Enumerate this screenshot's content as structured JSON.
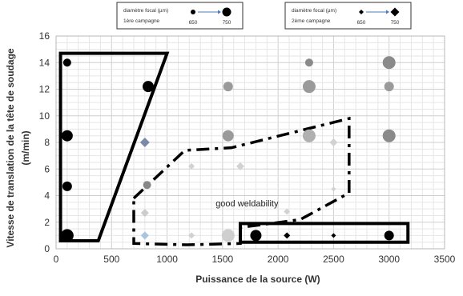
{
  "chart_data": {
    "type": "scatter",
    "xlabel": "Puissance de la source (W)",
    "ylabel": "Vitesse de translation de la tête de soudage (m/min)",
    "xlim": [
      0,
      3500
    ],
    "ylim": [
      0,
      16
    ],
    "xticks": [
      "0",
      "500",
      "1000",
      "1500",
      "2000",
      "2500",
      "3000",
      "3500"
    ],
    "yticks": [
      "0",
      "2",
      "4",
      "6",
      "8",
      "10",
      "12",
      "14",
      "16"
    ],
    "grid": true,
    "legend": [
      {
        "title": "diamètre focal (µm)",
        "campaign": "1ère campagne",
        "min_label": "650",
        "max_label": "750",
        "marker": "circle"
      },
      {
        "title": "diamètre focal (µm)",
        "campaign": "2ème campagne",
        "min_label": "650",
        "max_label": "750",
        "marker": "diamond"
      }
    ],
    "annotations": [
      {
        "text": "good weldability",
        "x": 1720,
        "y": 3.2
      }
    ],
    "series": [
      {
        "marker": "circle",
        "points": [
          {
            "x": 100,
            "y": 14,
            "size": 5,
            "color": "#000000"
          },
          {
            "x": 100,
            "y": 8.5,
            "size": 7,
            "color": "#000000"
          },
          {
            "x": 100,
            "y": 4.7,
            "size": 6,
            "color": "#000000"
          },
          {
            "x": 100,
            "y": 1,
            "size": 8,
            "color": "#000000"
          },
          {
            "x": 830,
            "y": 12.2,
            "size": 7,
            "color": "#000000"
          },
          {
            "x": 820,
            "y": 4.8,
            "size": 5,
            "color": "#888888"
          },
          {
            "x": 1550,
            "y": 12.2,
            "size": 6,
            "color": "#9a9a9a"
          },
          {
            "x": 1550,
            "y": 8.5,
            "size": 7,
            "color": "#9a9a9a"
          },
          {
            "x": 1550,
            "y": 1,
            "size": 8,
            "color": "#cfcfcf"
          },
          {
            "x": 2280,
            "y": 14,
            "size": 5,
            "color": "#8a8a8a"
          },
          {
            "x": 2280,
            "y": 12.2,
            "size": 8,
            "color": "#9a9a9a"
          },
          {
            "x": 2280,
            "y": 8.5,
            "size": 8,
            "color": "#b0b0b0"
          },
          {
            "x": 3000,
            "y": 14,
            "size": 8,
            "color": "#8a8a8a"
          },
          {
            "x": 3000,
            "y": 12.2,
            "size": 6,
            "color": "#9a9a9a"
          },
          {
            "x": 3000,
            "y": 8.5,
            "size": 8,
            "color": "#8a8a8a"
          },
          {
            "x": 1800,
            "y": 1,
            "size": 7,
            "color": "#000000"
          },
          {
            "x": 3000,
            "y": 1,
            "size": 6,
            "color": "#000000"
          }
        ]
      },
      {
        "marker": "diamond",
        "points": [
          {
            "x": 800,
            "y": 8,
            "size": 6,
            "color": "#7a8aa8"
          },
          {
            "x": 800,
            "y": 2.7,
            "size": 5,
            "color": "#cccccc"
          },
          {
            "x": 800,
            "y": 1,
            "size": 5,
            "color": "#a8c4e0"
          },
          {
            "x": 1220,
            "y": 6.2,
            "size": 4,
            "color": "#d2d2d2"
          },
          {
            "x": 1220,
            "y": 1,
            "size": 4,
            "color": "#d2d2d2"
          },
          {
            "x": 1660,
            "y": 6.2,
            "size": 5,
            "color": "#d2d2d2"
          },
          {
            "x": 2080,
            "y": 2.8,
            "size": 4,
            "color": "#d2d2d2"
          },
          {
            "x": 2500,
            "y": 8,
            "size": 5,
            "color": "#d2d2d2"
          },
          {
            "x": 2500,
            "y": 4.5,
            "size": 3,
            "color": "#d2d2d2"
          },
          {
            "x": 2080,
            "y": 1,
            "size": 4,
            "color": "#000000"
          },
          {
            "x": 2500,
            "y": 1,
            "size": 3,
            "color": "#000000"
          }
        ]
      }
    ],
    "regions": [
      {
        "style": "solid",
        "points": [
          [
            40,
            14.7
          ],
          [
            1000,
            14.7
          ],
          [
            380,
            0.6
          ],
          [
            40,
            0.6
          ]
        ]
      },
      {
        "style": "solid",
        "points": [
          [
            1660,
            1.9
          ],
          [
            3170,
            1.9
          ],
          [
            3170,
            0.5
          ],
          [
            1660,
            0.5
          ]
        ]
      },
      {
        "style": "dashdot",
        "points": [
          [
            700,
            3.8
          ],
          [
            1160,
            7.4
          ],
          [
            1580,
            7.6
          ],
          [
            2640,
            9.8
          ],
          [
            2640,
            4.2
          ],
          [
            2200,
            2.2
          ],
          [
            1660,
            1.6
          ],
          [
            1660,
            0.4
          ],
          [
            1180,
            0.3
          ],
          [
            700,
            0.4
          ]
        ]
      }
    ]
  }
}
